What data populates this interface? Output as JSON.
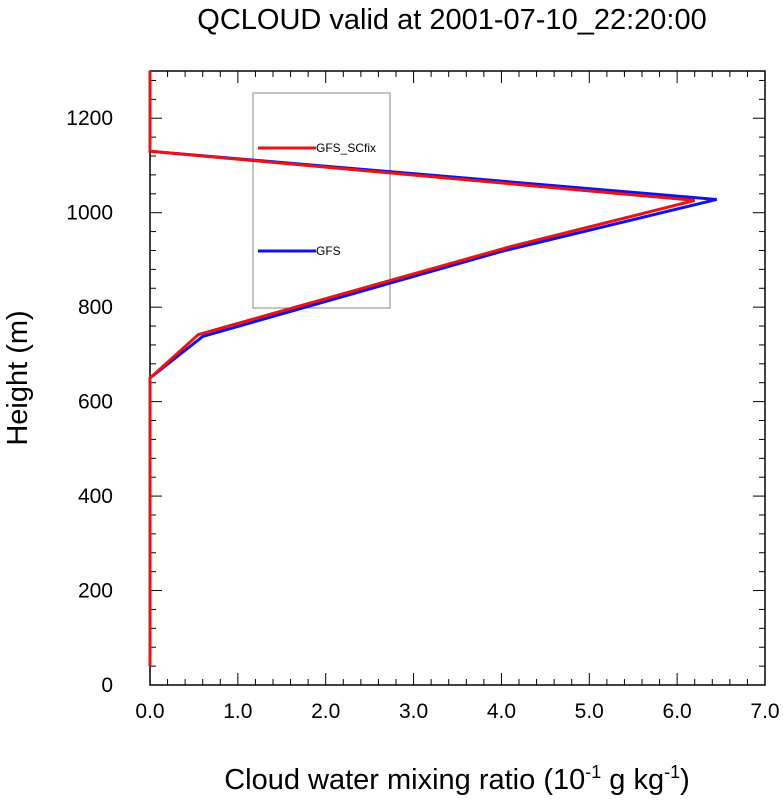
{
  "chart_data": {
    "type": "line",
    "title": "QCLOUD valid at 2001-07-10_22:20:00",
    "xlabel": {
      "base": "Cloud water mixing ratio (10",
      "exp1": "-1",
      "mid": " g kg",
      "exp2": "-1",
      "end": ")"
    },
    "ylabel": "Height (m)",
    "xlim": [
      0,
      7
    ],
    "ylim": [
      0,
      1300
    ],
    "x_ticks": [
      "0.0",
      "1.0",
      "2.0",
      "3.0",
      "4.0",
      "5.0",
      "6.0",
      "7.0"
    ],
    "y_ticks": [
      "0",
      "200",
      "400",
      "600",
      "800",
      "1000",
      "1200"
    ],
    "grid": false,
    "legend_position": "top-left inside",
    "series": [
      {
        "name": "GFS_SCfix",
        "color": "#ee1111",
        "points": [
          [
            0,
            40
          ],
          [
            0,
            650
          ],
          [
            0.55,
            742
          ],
          [
            4.1,
            928
          ],
          [
            6.2,
            1026
          ],
          [
            0,
            1130
          ],
          [
            0,
            1300
          ]
        ]
      },
      {
        "name": "GFS",
        "color": "#1111ee",
        "points": [
          [
            0,
            40
          ],
          [
            0,
            650
          ],
          [
            0.6,
            738
          ],
          [
            4.0,
            918
          ],
          [
            6.45,
            1028
          ],
          [
            0,
            1130
          ],
          [
            0,
            1300
          ]
        ]
      }
    ]
  }
}
